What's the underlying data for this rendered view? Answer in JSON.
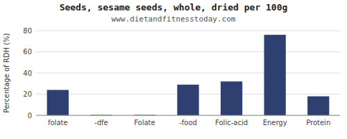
{
  "chart_data": {
    "type": "bar",
    "title": "Seeds, sesame seeds, whole, dried per 100g",
    "subtitle": "www.dietandfitnesstoday.com",
    "ylabel": "Percentage of RDH (%)",
    "categories": [
      "folate",
      "-dfe",
      "Folate",
      "-food",
      "Folic-acid",
      "Energy",
      "Protein"
    ],
    "values": [
      24,
      0.5,
      0.5,
      29,
      32,
      76,
      18
    ],
    "color": "#2d4070",
    "ylim": [
      0,
      80
    ],
    "yticks": [
      0,
      20,
      40,
      60,
      80
    ],
    "grid": true
  }
}
